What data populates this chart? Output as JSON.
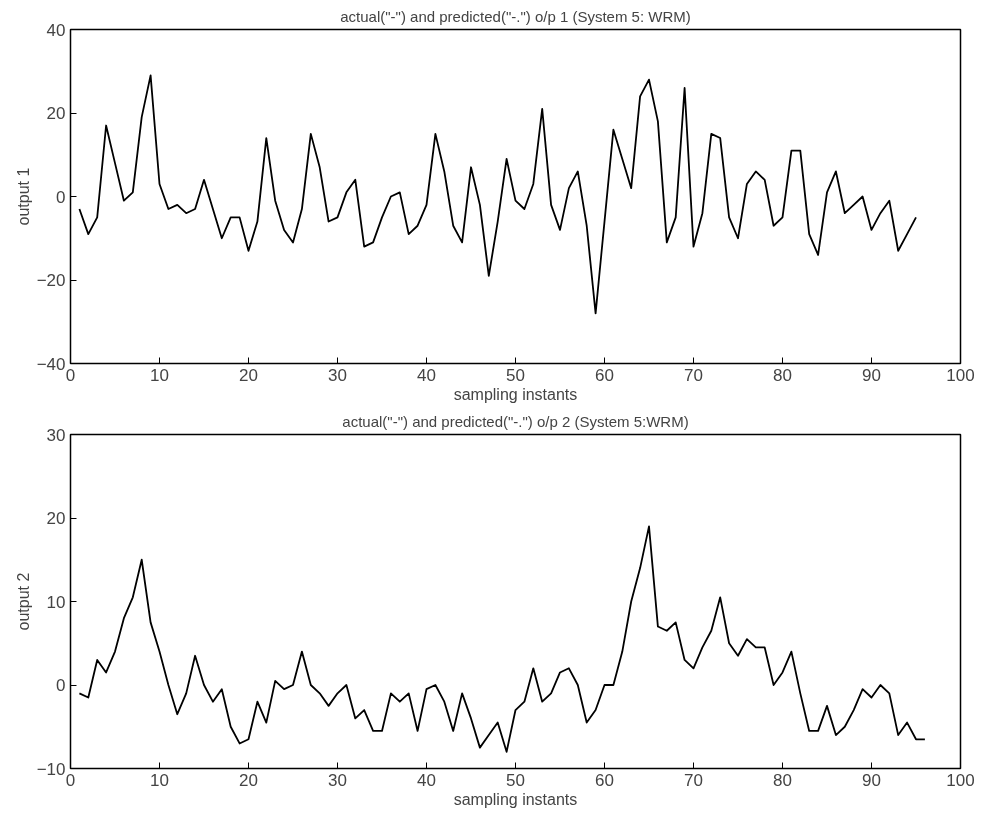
{
  "chart_data": [
    {
      "type": "line",
      "title": "actual(\"-\") and predicted(\"-.\") o/p 1 (System 5: WRM)",
      "xlabel": "sampling instants",
      "ylabel": "output 1",
      "x": [
        1,
        2,
        3,
        4,
        5,
        6,
        7,
        8,
        9,
        10,
        11,
        12,
        13,
        14,
        15,
        16,
        17,
        18,
        19,
        20,
        21,
        22,
        23,
        24,
        25,
        26,
        27,
        28,
        29,
        30,
        31,
        32,
        33,
        34,
        35,
        36,
        37,
        38,
        39,
        40,
        41,
        42,
        43,
        44,
        45,
        46,
        47,
        48,
        49,
        50,
        51,
        52,
        53,
        54,
        55,
        56,
        57,
        58,
        59,
        60,
        61,
        62,
        63,
        64,
        65,
        66,
        67,
        68,
        69,
        70,
        71,
        72,
        73,
        74,
        75,
        76,
        77,
        78,
        79,
        80,
        81,
        82,
        83,
        84,
        85,
        86,
        87,
        88,
        89,
        90,
        91,
        92,
        93,
        94,
        95
      ],
      "series": [
        {
          "color": "#000000",
          "values": [
            -3,
            -9,
            -5,
            17,
            8,
            -1,
            1,
            19,
            29,
            3,
            -3,
            -2,
            -4,
            -3,
            4,
            -3,
            -10,
            -5,
            -5,
            -13,
            -6,
            14,
            -1,
            -8,
            -11,
            -3,
            15,
            7,
            -6,
            -5,
            1,
            4,
            -12,
            -11,
            -5,
            0,
            1,
            -9,
            -7,
            -2,
            15,
            6,
            -7,
            -11,
            7,
            -2,
            -19,
            -6,
            9,
            -1,
            -3,
            3,
            21,
            -2,
            -8,
            2,
            6,
            -7,
            -28,
            -6,
            16,
            9,
            2,
            24,
            28,
            18,
            -11,
            -5,
            26,
            -12,
            -4,
            15,
            14,
            -5,
            -10,
            3,
            6,
            4,
            -7,
            -5,
            11,
            11,
            -9,
            -14,
            1,
            6,
            -4,
            -2,
            0,
            -8,
            -4,
            -1,
            -13,
            -9,
            -5
          ]
        }
      ],
      "xlim": [
        0,
        100
      ],
      "xticks": [
        0,
        10,
        20,
        30,
        40,
        50,
        60,
        70,
        80,
        90,
        100
      ],
      "ylim": [
        -40,
        40
      ],
      "yticks": [
        -40,
        -20,
        0,
        20,
        40
      ],
      "grid": false,
      "line_style": "solid",
      "marker": "none"
    },
    {
      "type": "line",
      "title": "actual(\"-\") and predicted(\"-.\") o/p 2 (System 5:WRM)",
      "xlabel": "sampling instants",
      "ylabel": "output 2",
      "x": [
        1,
        2,
        3,
        4,
        5,
        6,
        7,
        8,
        9,
        10,
        11,
        12,
        13,
        14,
        15,
        16,
        17,
        18,
        19,
        20,
        21,
        22,
        23,
        24,
        25,
        26,
        27,
        28,
        29,
        30,
        31,
        32,
        33,
        34,
        35,
        36,
        37,
        38,
        39,
        40,
        41,
        42,
        43,
        44,
        45,
        46,
        47,
        48,
        49,
        50,
        51,
        52,
        53,
        54,
        55,
        56,
        57,
        58,
        59,
        60,
        61,
        62,
        63,
        64,
        65,
        66,
        67,
        68,
        69,
        70,
        71,
        72,
        73,
        74,
        75,
        76,
        77,
        78,
        79,
        80,
        81,
        82,
        83,
        84,
        85,
        86,
        87,
        88,
        89,
        90,
        91,
        92,
        93,
        94,
        95,
        96
      ],
      "series": [
        {
          "color": "#000000",
          "values": [
            -1,
            -1.5,
            3,
            1.5,
            4,
            8,
            10.5,
            15,
            7.5,
            4,
            0,
            -3.5,
            -1,
            3.5,
            0,
            -2,
            -0.5,
            -5,
            -7,
            -6.5,
            -2,
            -4.5,
            0.5,
            -0.5,
            0,
            4,
            0,
            -1,
            -2.5,
            -1,
            0,
            -4,
            -3,
            -5.5,
            -5.5,
            -1,
            -2,
            -1,
            -5.5,
            -0.5,
            0,
            -2,
            -5.5,
            -1,
            -4,
            -7.5,
            -6,
            -4.5,
            -8,
            -3,
            -2,
            2,
            -2,
            -1,
            1.5,
            2,
            0,
            -4.5,
            -3,
            0,
            0,
            4,
            10,
            14,
            19,
            7,
            6.5,
            7.5,
            3,
            2,
            4.5,
            6.5,
            10.5,
            5,
            3.5,
            5.5,
            4.5,
            4.5,
            0,
            1.5,
            4,
            -1,
            -5.5,
            -5.5,
            -2.5,
            -6,
            -5,
            -3,
            -0.5,
            -1.5,
            0,
            -1,
            -6,
            -4.5,
            -6.5,
            -6.5
          ]
        }
      ],
      "xlim": [
        0,
        100
      ],
      "xticks": [
        0,
        10,
        20,
        30,
        40,
        50,
        60,
        70,
        80,
        90,
        100
      ],
      "ylim": [
        -10,
        30
      ],
      "yticks": [
        -10,
        0,
        10,
        20,
        30
      ],
      "grid": false,
      "line_style": "solid",
      "marker": "none"
    }
  ]
}
